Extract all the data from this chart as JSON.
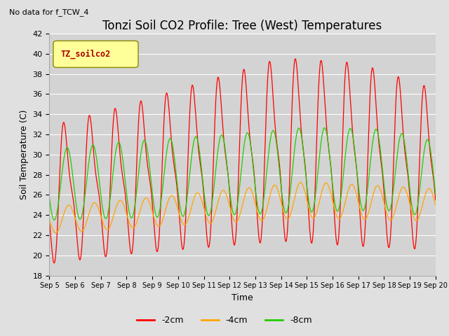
{
  "title": "Tonzi Soil CO2 Profile: Tree (West) Temperatures",
  "subtitle": "No data for f_TCW_4",
  "legend_label": "TZ_soilco2",
  "xlabel": "Time",
  "ylabel": "Soil Temperature (C)",
  "ylim": [
    18,
    42
  ],
  "xlim_days": [
    0,
    15
  ],
  "x_tick_labels": [
    "Sep 5",
    "Sep 6",
    "Sep 7",
    "Sep 8",
    "Sep 9",
    "Sep 10",
    "Sep 11",
    "Sep 12",
    "Sep 13",
    "Sep 14",
    "Sep 15",
    "Sep 16",
    "Sep 17",
    "Sep 18",
    "Sep 19",
    "Sep 20"
  ],
  "line_colors": {
    "neg2cm": "#ff0000",
    "neg4cm": "#ffa500",
    "neg8cm": "#22cc00"
  },
  "line_labels": [
    "-2cm",
    "-4cm",
    "-8cm"
  ],
  "background_color": "#e0e0e0",
  "plot_bg_color": "#d3d3d3",
  "grid_color": "#ffffff",
  "title_fontsize": 12,
  "axis_fontsize": 9,
  "legend_fontsize": 9,
  "legend_box_color": "#ffff99"
}
